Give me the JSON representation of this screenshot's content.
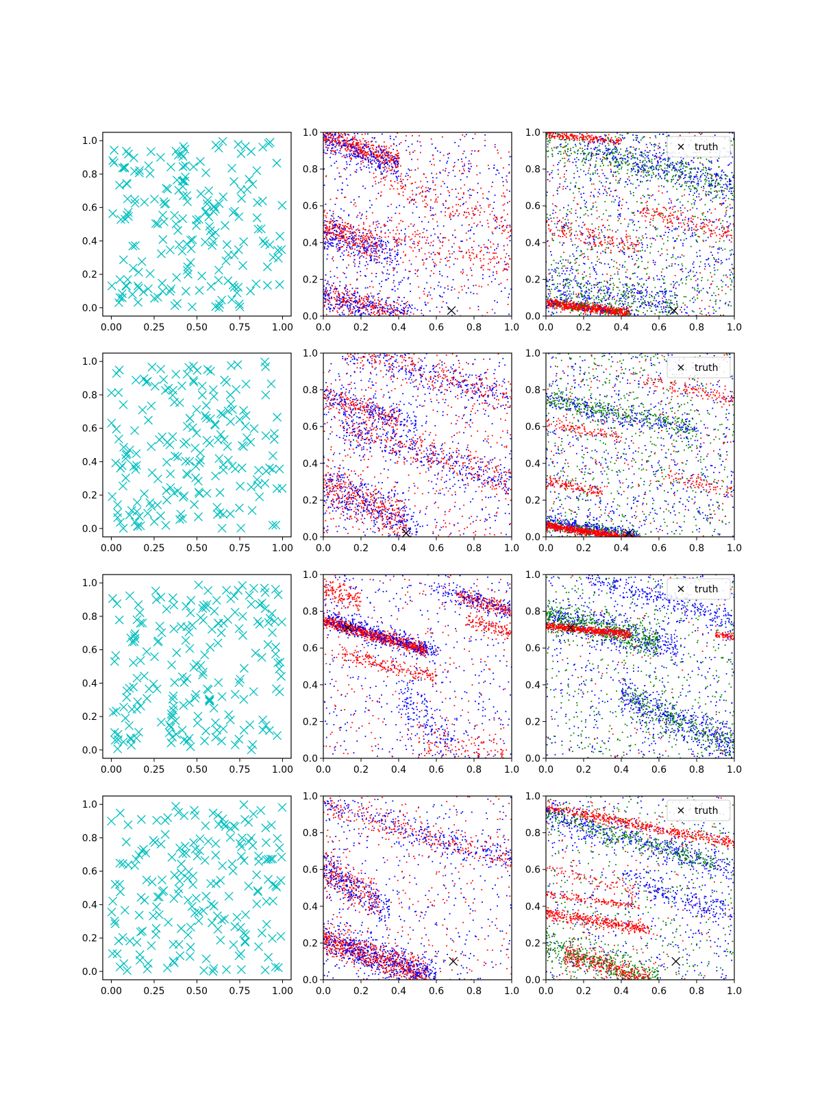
{
  "figure": {
    "background": "#ffffff",
    "rows": 4,
    "cols": 3
  },
  "colors": {
    "samples": "#00bfbf",
    "series_red": "#ff0000",
    "series_blue": "#0000ff",
    "series_green": "#008000",
    "truth": "#000000"
  },
  "chart_data": [
    {
      "id": "r1c1",
      "type": "scatter",
      "marker": "x",
      "xlim": [
        -0.05,
        1.05
      ],
      "ylim": [
        -0.05,
        1.05
      ],
      "xticks": [
        "0.00",
        "0.25",
        "0.50",
        "0.75",
        "1.00"
      ],
      "yticks": [
        "0.0",
        "0.2",
        "0.4",
        "0.6",
        "0.8",
        "1.0"
      ],
      "series": [
        {
          "color": "#00bfbf",
          "n_points": 200,
          "distribution": "uniform",
          "seed": 11
        }
      ]
    },
    {
      "id": "r1c2",
      "type": "scatter",
      "xlim": [
        0,
        1
      ],
      "ylim": [
        0,
        1
      ],
      "xticks": [
        "0.0",
        "0.2",
        "0.4",
        "0.6",
        "0.8",
        "1.0"
      ],
      "yticks": [
        "0.0",
        "0.2",
        "0.4",
        "0.6",
        "0.8",
        "1.0"
      ],
      "truth": {
        "x": 0.68,
        "y": 0.03
      },
      "seed": 21,
      "bands": [
        {
          "c": "#ff0000",
          "y0": 0.98,
          "slope": -0.35,
          "spread": 0.03,
          "x0": 0.0,
          "x1": 0.4,
          "n": 450
        },
        {
          "c": "#0000ff",
          "y0": 0.96,
          "slope": -0.35,
          "spread": 0.04,
          "x0": 0.0,
          "x1": 0.4,
          "n": 250
        },
        {
          "c": "#ff0000",
          "y0": 0.48,
          "slope": -0.35,
          "spread": 0.04,
          "x0": 0.0,
          "x1": 0.3,
          "n": 300
        },
        {
          "c": "#0000ff",
          "y0": 0.45,
          "slope": -0.35,
          "spread": 0.05,
          "x0": 0.0,
          "x1": 0.4,
          "n": 250
        },
        {
          "c": "#ff0000",
          "y0": 0.12,
          "slope": -0.3,
          "spread": 0.04,
          "x0": 0.0,
          "x1": 0.45,
          "n": 300
        },
        {
          "c": "#0000ff",
          "y0": 0.12,
          "slope": -0.3,
          "spread": 0.05,
          "x0": 0.0,
          "x1": 0.5,
          "n": 300
        },
        {
          "c": "#ff0000",
          "y0": 0.85,
          "slope": -0.35,
          "spread": 0.05,
          "x0": 0.3,
          "x1": 1.0,
          "n": 150
        },
        {
          "c": "#ff0000",
          "y0": 0.56,
          "slope": -0.3,
          "spread": 0.05,
          "x0": 0.3,
          "x1": 1.0,
          "n": 150
        }
      ],
      "uniform": [
        {
          "c": "#0000ff",
          "n": 500
        },
        {
          "c": "#ff0000",
          "n": 350
        }
      ]
    },
    {
      "id": "r1c3",
      "type": "scatter",
      "xlim": [
        0,
        1
      ],
      "ylim": [
        0,
        1
      ],
      "xticks": [
        "0.0",
        "0.2",
        "0.4",
        "0.6",
        "0.8",
        "1.0"
      ],
      "yticks": [
        "0.0",
        "0.2",
        "0.4",
        "0.6",
        "0.8",
        "1.0"
      ],
      "truth": {
        "x": 0.68,
        "y": 0.03
      },
      "legend": "truth",
      "seed": 31,
      "bands": [
        {
          "c": "#ff0000",
          "y0": 0.07,
          "slope": -0.12,
          "spread": 0.012,
          "x0": 0.0,
          "x1": 0.45,
          "n": 700
        },
        {
          "c": "#ff0000",
          "y0": 0.99,
          "slope": -0.1,
          "spread": 0.01,
          "x0": 0.0,
          "x1": 0.4,
          "n": 200
        },
        {
          "c": "#008000",
          "y0": 0.95,
          "slope": -0.25,
          "spread": 0.04,
          "x0": 0.0,
          "x1": 1.0,
          "n": 350
        },
        {
          "c": "#0000ff",
          "y0": 0.97,
          "slope": -0.25,
          "spread": 0.05,
          "x0": 0.2,
          "x1": 1.0,
          "n": 300
        },
        {
          "c": "#ff0000",
          "y0": 0.48,
          "slope": -0.2,
          "spread": 0.03,
          "x0": 0.0,
          "x1": 0.5,
          "n": 150
        },
        {
          "c": "#ff0000",
          "y0": 0.7,
          "slope": -0.25,
          "spread": 0.03,
          "x0": 0.5,
          "x1": 1.0,
          "n": 150
        },
        {
          "c": "#0000ff",
          "y0": 0.15,
          "slope": -0.15,
          "spread": 0.06,
          "x0": 0.0,
          "x1": 0.7,
          "n": 300
        },
        {
          "c": "#008000",
          "y0": 0.14,
          "slope": -0.15,
          "spread": 0.06,
          "x0": 0.0,
          "x1": 0.7,
          "n": 250
        }
      ],
      "uniform": [
        {
          "c": "#0000ff",
          "n": 700
        },
        {
          "c": "#008000",
          "n": 600
        },
        {
          "c": "#ff0000",
          "n": 250
        }
      ]
    },
    {
      "id": "r2c1",
      "type": "scatter",
      "marker": "x",
      "xlim": [
        -0.05,
        1.05
      ],
      "ylim": [
        -0.05,
        1.05
      ],
      "xticks": [
        "0.00",
        "0.25",
        "0.50",
        "0.75",
        "1.00"
      ],
      "yticks": [
        "0.0",
        "0.2",
        "0.4",
        "0.6",
        "0.8",
        "1.0"
      ],
      "series": [
        {
          "color": "#00bfbf",
          "n_points": 200,
          "distribution": "uniform",
          "seed": 12
        }
      ]
    },
    {
      "id": "r2c2",
      "type": "scatter",
      "xlim": [
        0,
        1
      ],
      "ylim": [
        0,
        1
      ],
      "xticks": [
        "0.0",
        "0.2",
        "0.4",
        "0.6",
        "0.8",
        "1.0"
      ],
      "yticks": [
        "0.0",
        "0.2",
        "0.4",
        "0.6",
        "0.8",
        "1.0"
      ],
      "truth": {
        "x": 0.44,
        "y": 0.02
      },
      "seed": 22,
      "bands": [
        {
          "c": "#ff0000",
          "y0": 0.76,
          "slope": -0.3,
          "spread": 0.03,
          "x0": 0.0,
          "x1": 0.4,
          "n": 200
        },
        {
          "c": "#0000ff",
          "y0": 0.76,
          "slope": -0.3,
          "spread": 0.04,
          "x0": 0.0,
          "x1": 0.5,
          "n": 200
        },
        {
          "c": "#ff0000",
          "y0": 0.64,
          "slope": -0.35,
          "spread": 0.04,
          "x0": 0.1,
          "x1": 1.0,
          "n": 300
        },
        {
          "c": "#0000ff",
          "y0": 0.64,
          "slope": -0.35,
          "spread": 0.05,
          "x0": 0.1,
          "x1": 1.0,
          "n": 300
        },
        {
          "c": "#ff0000",
          "y0": 0.28,
          "slope": -0.45,
          "spread": 0.06,
          "x0": 0.0,
          "x1": 0.45,
          "n": 400
        },
        {
          "c": "#0000ff",
          "y0": 0.28,
          "slope": -0.45,
          "spread": 0.07,
          "x0": 0.0,
          "x1": 0.5,
          "n": 300
        },
        {
          "c": "#ff0000",
          "y0": 1.05,
          "slope": -0.3,
          "spread": 0.04,
          "x0": 0.1,
          "x1": 1.0,
          "n": 250
        },
        {
          "c": "#0000ff",
          "y0": 1.05,
          "slope": -0.3,
          "spread": 0.05,
          "x0": 0.1,
          "x1": 1.0,
          "n": 250
        }
      ],
      "uniform": [
        {
          "c": "#0000ff",
          "n": 400
        },
        {
          "c": "#ff0000",
          "n": 350
        }
      ]
    },
    {
      "id": "r2c3",
      "type": "scatter",
      "xlim": [
        0,
        1
      ],
      "ylim": [
        0,
        1
      ],
      "xticks": [
        "0.0",
        "0.2",
        "0.4",
        "0.6",
        "0.8",
        "1.0"
      ],
      "yticks": [
        "0.0",
        "0.2",
        "0.4",
        "0.6",
        "0.8",
        "1.0"
      ],
      "truth": {
        "x": 0.44,
        "y": 0.02
      },
      "legend": "truth",
      "seed": 32,
      "bands": [
        {
          "c": "#0000ff",
          "y0": 0.08,
          "slope": -0.15,
          "spread": 0.02,
          "x0": 0.0,
          "x1": 0.5,
          "n": 350
        },
        {
          "c": "#008000",
          "y0": 0.07,
          "slope": -0.15,
          "spread": 0.02,
          "x0": 0.0,
          "x1": 0.5,
          "n": 200
        },
        {
          "c": "#ff0000",
          "y0": 0.06,
          "slope": -0.15,
          "spread": 0.01,
          "x0": 0.0,
          "x1": 0.6,
          "n": 800
        },
        {
          "c": "#008000",
          "y0": 0.75,
          "slope": -0.2,
          "spread": 0.03,
          "x0": 0.0,
          "x1": 0.8,
          "n": 300
        },
        {
          "c": "#0000ff",
          "y0": 0.74,
          "slope": -0.2,
          "spread": 0.03,
          "x0": 0.0,
          "x1": 0.8,
          "n": 200
        },
        {
          "c": "#ff0000",
          "y0": 0.3,
          "slope": -0.2,
          "spread": 0.015,
          "x0": 0.0,
          "x1": 0.3,
          "n": 120
        },
        {
          "c": "#ff0000",
          "y0": 0.62,
          "slope": -0.2,
          "spread": 0.015,
          "x0": 0.0,
          "x1": 0.4,
          "n": 100
        },
        {
          "c": "#ff0000",
          "y0": 0.95,
          "slope": -0.2,
          "spread": 0.02,
          "x0": 0.5,
          "x1": 1.0,
          "n": 120
        },
        {
          "c": "#ff0000",
          "y0": 0.45,
          "slope": -0.2,
          "spread": 0.02,
          "x0": 0.6,
          "x1": 1.0,
          "n": 80
        }
      ],
      "uniform": [
        {
          "c": "#0000ff",
          "n": 650
        },
        {
          "c": "#008000",
          "n": 600
        },
        {
          "c": "#ff0000",
          "n": 200
        }
      ]
    },
    {
      "id": "r3c1",
      "type": "scatter",
      "marker": "x",
      "xlim": [
        -0.05,
        1.05
      ],
      "ylim": [
        -0.05,
        1.05
      ],
      "xticks": [
        "0.00",
        "0.25",
        "0.50",
        "0.75",
        "1.00"
      ],
      "yticks": [
        "0.0",
        "0.2",
        "0.4",
        "0.6",
        "0.8",
        "1.0"
      ],
      "series": [
        {
          "color": "#00bfbf",
          "n_points": 200,
          "distribution": "uniform",
          "seed": 13
        }
      ]
    },
    {
      "id": "r3c2",
      "type": "scatter",
      "xlim": [
        0,
        1
      ],
      "ylim": [
        0,
        1
      ],
      "xticks": [
        "0.0",
        "0.2",
        "0.4",
        "0.6",
        "0.8",
        "1.0"
      ],
      "yticks": [
        "0.0",
        "0.2",
        "0.4",
        "0.6",
        "0.8",
        "1.0"
      ],
      "truth": {
        "x": 0.13,
        "y": 0.71
      },
      "seed": 23,
      "bands": [
        {
          "c": "#ff0000",
          "y0": 0.75,
          "slope": -0.3,
          "spread": 0.015,
          "x0": 0.0,
          "x1": 0.55,
          "n": 900
        },
        {
          "c": "#0000ff",
          "y0": 0.76,
          "slope": -0.3,
          "spread": 0.03,
          "x0": 0.0,
          "x1": 0.6,
          "n": 350
        },
        {
          "c": "#ff0000",
          "y0": 0.92,
          "slope": -0.3,
          "spread": 0.03,
          "x0": 0.0,
          "x1": 0.2,
          "n": 120
        },
        {
          "c": "#ff0000",
          "y0": 1.1,
          "slope": -0.3,
          "spread": 0.02,
          "x0": 0.7,
          "x1": 1.0,
          "n": 200
        },
        {
          "c": "#0000ff",
          "y0": 1.1,
          "slope": -0.3,
          "spread": 0.03,
          "x0": 0.6,
          "x1": 1.0,
          "n": 150
        },
        {
          "c": "#ff0000",
          "y0": 0.59,
          "slope": -0.25,
          "spread": 0.02,
          "x0": 0.1,
          "x1": 0.6,
          "n": 200
        },
        {
          "c": "#ff0000",
          "y0": 0.98,
          "slope": -0.3,
          "spread": 0.02,
          "x0": 0.75,
          "x1": 1.0,
          "n": 120
        },
        {
          "c": "#ff0000",
          "y0": 0.28,
          "slope": -0.3,
          "spread": 0.05,
          "x0": 0.5,
          "x1": 1.0,
          "n": 120
        },
        {
          "c": "#0000ff",
          "y0": 0.75,
          "slope": -1.0,
          "spread": 0.06,
          "x0": 0.4,
          "x1": 0.7,
          "n": 150
        }
      ],
      "uniform": [
        {
          "c": "#0000ff",
          "n": 450
        },
        {
          "c": "#ff0000",
          "n": 250
        }
      ]
    },
    {
      "id": "r3c3",
      "type": "scatter",
      "xlim": [
        0,
        1
      ],
      "ylim": [
        0,
        1
      ],
      "xticks": [
        "0.0",
        "0.2",
        "0.4",
        "0.6",
        "0.8",
        "1.0"
      ],
      "yticks": [
        "0.0",
        "0.2",
        "0.4",
        "0.6",
        "0.8",
        "1.0"
      ],
      "truth": {
        "x": 0.13,
        "y": 0.71
      },
      "legend": "truth",
      "seed": 33,
      "bands": [
        {
          "c": "#0000ff",
          "y0": 0.78,
          "slope": -0.25,
          "spread": 0.05,
          "x0": 0.0,
          "x1": 0.7,
          "n": 400
        },
        {
          "c": "#008000",
          "y0": 0.78,
          "slope": -0.25,
          "spread": 0.04,
          "x0": 0.0,
          "x1": 0.6,
          "n": 500
        },
        {
          "c": "#ff0000",
          "y0": 0.72,
          "slope": -0.1,
          "spread": 0.01,
          "x0": 0.0,
          "x1": 0.45,
          "n": 500
        },
        {
          "c": "#ff0000",
          "y0": 0.76,
          "slope": -0.1,
          "spread": 0.01,
          "x0": 0.9,
          "x1": 1.0,
          "n": 60
        },
        {
          "c": "#0000ff",
          "y0": 1.05,
          "slope": -0.3,
          "spread": 0.03,
          "x0": 0.2,
          "x1": 1.0,
          "n": 250
        },
        {
          "c": "#0000ff",
          "y0": 0.55,
          "slope": -0.5,
          "spread": 0.05,
          "x0": 0.4,
          "x1": 1.0,
          "n": 400
        },
        {
          "c": "#008000",
          "y0": 0.55,
          "slope": -0.5,
          "spread": 0.05,
          "x0": 0.4,
          "x1": 1.0,
          "n": 250
        }
      ],
      "uniform": [
        {
          "c": "#0000ff",
          "n": 500
        },
        {
          "c": "#008000",
          "n": 450
        },
        {
          "c": "#ff0000",
          "n": 80
        }
      ]
    },
    {
      "id": "r4c1",
      "type": "scatter",
      "marker": "x",
      "xlim": [
        -0.05,
        1.05
      ],
      "ylim": [
        -0.05,
        1.05
      ],
      "xticks": [
        "0.00",
        "0.25",
        "0.50",
        "0.75",
        "1.00"
      ],
      "yticks": [
        "0.0",
        "0.2",
        "0.4",
        "0.6",
        "0.8",
        "1.0"
      ],
      "series": [
        {
          "color": "#00bfbf",
          "n_points": 200,
          "distribution": "uniform",
          "seed": 14
        }
      ]
    },
    {
      "id": "r4c2",
      "type": "scatter",
      "xlim": [
        0,
        1
      ],
      "ylim": [
        0,
        1
      ],
      "xticks": [
        "0.0",
        "0.2",
        "0.4",
        "0.6",
        "0.8",
        "1.0"
      ],
      "yticks": [
        "0.0",
        "0.2",
        "0.4",
        "0.6",
        "0.8",
        "1.0"
      ],
      "truth": {
        "x": 0.69,
        "y": 0.1
      },
      "seed": 24,
      "bands": [
        {
          "c": "#ff0000",
          "y0": 0.22,
          "slope": -0.35,
          "spread": 0.04,
          "x0": 0.0,
          "x1": 0.55,
          "n": 700
        },
        {
          "c": "#0000ff",
          "y0": 0.22,
          "slope": -0.35,
          "spread": 0.05,
          "x0": 0.0,
          "x1": 0.6,
          "n": 500
        },
        {
          "c": "#ff0000",
          "y0": 0.6,
          "slope": -0.6,
          "spread": 0.05,
          "x0": 0.0,
          "x1": 0.3,
          "n": 250
        },
        {
          "c": "#0000ff",
          "y0": 0.6,
          "slope": -0.6,
          "spread": 0.06,
          "x0": 0.0,
          "x1": 0.35,
          "n": 250
        },
        {
          "c": "#ff0000",
          "y0": 0.95,
          "slope": -0.3,
          "spread": 0.03,
          "x0": 0.0,
          "x1": 1.0,
          "n": 250
        },
        {
          "c": "#0000ff",
          "y0": 0.95,
          "slope": -0.3,
          "spread": 0.04,
          "x0": 0.0,
          "x1": 1.0,
          "n": 250
        }
      ],
      "uniform": [
        {
          "c": "#0000ff",
          "n": 350
        },
        {
          "c": "#ff0000",
          "n": 300
        }
      ]
    },
    {
      "id": "r4c3",
      "type": "scatter",
      "xlim": [
        0,
        1
      ],
      "ylim": [
        0,
        1
      ],
      "xticks": [
        "0.0",
        "0.2",
        "0.4",
        "0.6",
        "0.8",
        "1.0"
      ],
      "yticks": [
        "0.0",
        "0.2",
        "0.4",
        "0.6",
        "0.8",
        "1.0"
      ],
      "truth": {
        "x": 0.69,
        "y": 0.1
      },
      "legend": "truth",
      "seed": 34,
      "bands": [
        {
          "c": "#ff0000",
          "y0": 0.94,
          "slope": -0.2,
          "spread": 0.015,
          "x0": 0.0,
          "x1": 1.0,
          "n": 500
        },
        {
          "c": "#0000ff",
          "y0": 0.9,
          "slope": -0.3,
          "spread": 0.04,
          "x0": 0.0,
          "x1": 1.0,
          "n": 400
        },
        {
          "c": "#008000",
          "y0": 0.9,
          "slope": -0.3,
          "spread": 0.03,
          "x0": 0.0,
          "x1": 0.9,
          "n": 300
        },
        {
          "c": "#ff0000",
          "y0": 0.36,
          "slope": -0.15,
          "spread": 0.015,
          "x0": 0.0,
          "x1": 0.55,
          "n": 350
        },
        {
          "c": "#ff0000",
          "y0": 0.47,
          "slope": -0.15,
          "spread": 0.01,
          "x0": 0.0,
          "x1": 0.5,
          "n": 120
        },
        {
          "c": "#ff0000",
          "y0": 0.17,
          "slope": -0.3,
          "spread": 0.03,
          "x0": 0.1,
          "x1": 0.55,
          "n": 400
        },
        {
          "c": "#008000",
          "y0": 0.2,
          "slope": -0.35,
          "spread": 0.05,
          "x0": 0.0,
          "x1": 0.6,
          "n": 350
        },
        {
          "c": "#0000ff",
          "y0": 0.7,
          "slope": -0.35,
          "spread": 0.04,
          "x0": 0.4,
          "x1": 1.0,
          "n": 200
        },
        {
          "c": "#ff0000",
          "y0": 0.62,
          "slope": -0.3,
          "spread": 0.02,
          "x0": 0.0,
          "x1": 0.5,
          "n": 80
        }
      ],
      "uniform": [
        {
          "c": "#0000ff",
          "n": 450
        },
        {
          "c": "#008000",
          "n": 400
        },
        {
          "c": "#ff0000",
          "n": 150
        }
      ]
    }
  ]
}
